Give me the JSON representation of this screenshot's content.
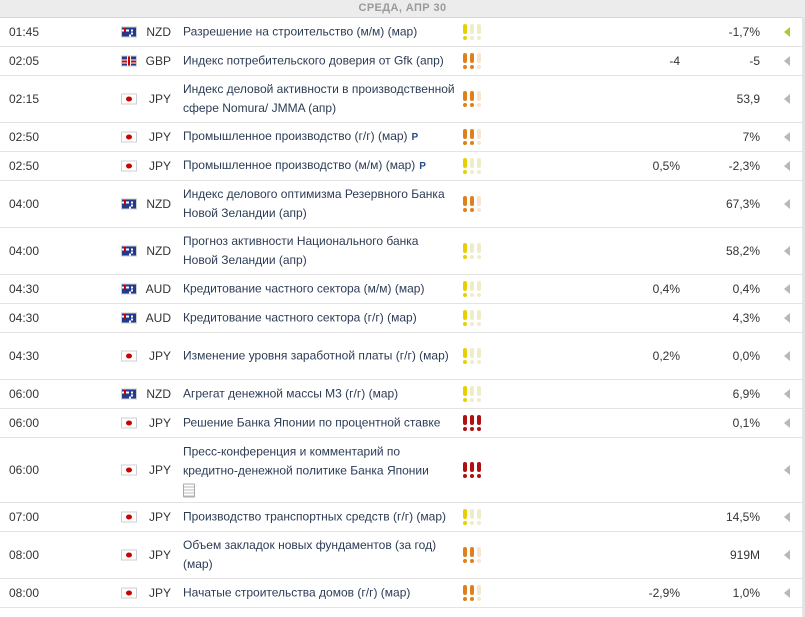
{
  "header": {
    "title": "СРЕДА, АПР 30"
  },
  "events": [
    {
      "time": "01:45",
      "flag": "nzd",
      "currency": "NZD",
      "name": "Разрешение на строительство (м/м) (мар)",
      "importance": 1,
      "fact": "",
      "forecast": "",
      "previous": "-1,7%",
      "arrow_active": true
    },
    {
      "time": "02:05",
      "flag": "gbp",
      "currency": "GBP",
      "name": "Индекс потребительского доверия от Gfk (апр)",
      "importance": 2,
      "fact": "",
      "forecast": "-4",
      "previous": "-5",
      "arrow_active": false
    },
    {
      "time": "02:15",
      "flag": "jpy",
      "currency": "JPY",
      "name": "Индекс деловой активности в производственной сфере Nomura/ JMMA (апр)",
      "importance": 2,
      "fact": "",
      "forecast": "",
      "previous": "53,9",
      "arrow_active": false
    },
    {
      "time": "02:50",
      "flag": "jpy",
      "currency": "JPY",
      "name": "Промышленное производство (г/г) (мар)",
      "mark": "P",
      "importance": 2,
      "fact": "",
      "forecast": "",
      "previous": "7%",
      "arrow_active": false
    },
    {
      "time": "02:50",
      "flag": "jpy",
      "currency": "JPY",
      "name": "Промышленное производство (м/м) (мар)",
      "mark": "P",
      "importance": 1,
      "fact": "",
      "forecast": "0,5%",
      "previous": "-2,3%",
      "arrow_active": false
    },
    {
      "time": "04:00",
      "flag": "nzd",
      "currency": "NZD",
      "name": "Индекс делового оптимизма Резервного Банка Новой Зеландии (апр)",
      "importance": 2,
      "fact": "",
      "forecast": "",
      "previous": "67,3%",
      "arrow_active": false
    },
    {
      "time": "04:00",
      "flag": "nzd",
      "currency": "NZD",
      "name": "Прогноз активности Национального банка Новой Зеландии (апр)",
      "importance": 1,
      "fact": "",
      "forecast": "",
      "previous": "58,2%",
      "arrow_active": false
    },
    {
      "time": "04:30",
      "flag": "aud",
      "currency": "AUD",
      "name": "Кредитование частного сектора (м/м) (мар)",
      "importance": 1,
      "fact": "",
      "forecast": "0,4%",
      "previous": "0,4%",
      "arrow_active": false
    },
    {
      "time": "04:30",
      "flag": "aud",
      "currency": "AUD",
      "name": "Кредитование частного сектора (г/г) (мар)",
      "importance": 1,
      "fact": "",
      "forecast": "",
      "previous": "4,3%",
      "arrow_active": false
    },
    {
      "time": "04:30",
      "flag": "jpy",
      "currency": "JPY",
      "name": "Изменение уровня заработной платы (г/г) (мар)",
      "importance": 1,
      "fact": "",
      "forecast": "0,2%",
      "previous": "0,0%",
      "arrow_active": false
    },
    {
      "time": "06:00",
      "flag": "nzd",
      "currency": "NZD",
      "name": "Агрегат денежной массы М3 (г/г) (мар)",
      "importance": 1,
      "fact": "",
      "forecast": "",
      "previous": "6,9%",
      "arrow_active": false
    },
    {
      "time": "06:00",
      "flag": "jpy",
      "currency": "JPY",
      "name": "Решение Банка Японии по процентной ставке",
      "importance": 3,
      "fact": "",
      "forecast": "",
      "previous": "0,1%",
      "arrow_active": false
    },
    {
      "time": "06:00",
      "flag": "jpy",
      "currency": "JPY",
      "name": "Пресс-конференция и комментарий по кредитно-денежной политике Банка Японии",
      "doc": true,
      "importance": 3,
      "fact": "",
      "forecast": "",
      "previous": "",
      "arrow_active": false
    },
    {
      "time": "07:00",
      "flag": "jpy",
      "currency": "JPY",
      "name": "Производство транспортных средств (г/г) (мар)",
      "importance": 1,
      "fact": "",
      "forecast": "",
      "previous": "14,5%",
      "arrow_active": false
    },
    {
      "time": "08:00",
      "flag": "jpy",
      "currency": "JPY",
      "name": "Объем закладок новых фундаментов (за год) (мар)",
      "importance": 2,
      "fact": "",
      "forecast": "",
      "previous": "919M",
      "arrow_active": false
    },
    {
      "time": "08:00",
      "flag": "jpy",
      "currency": "JPY",
      "name": "Начатые строительства домов (г/г) (мар)",
      "importance": 2,
      "fact": "",
      "forecast": "-2,9%",
      "previous": "1,0%",
      "arrow_active": false
    }
  ]
}
